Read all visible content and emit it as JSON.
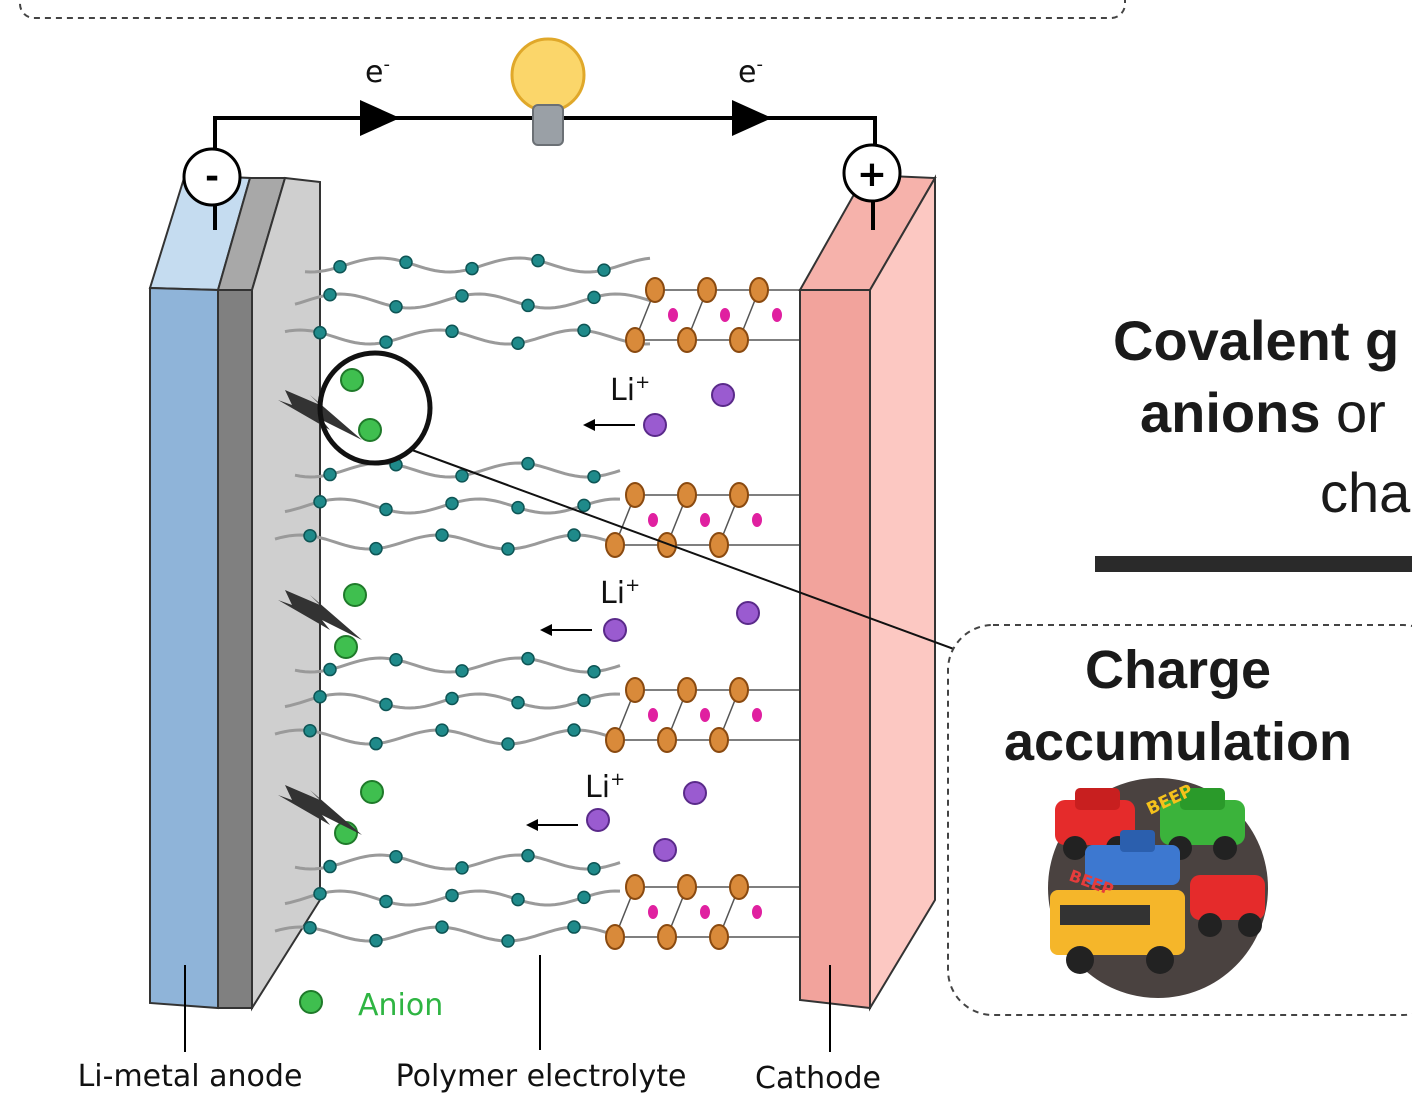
{
  "circuit": {
    "electron_labels": [
      {
        "base": "e",
        "sup": "-"
      },
      {
        "base": "e",
        "sup": "-"
      }
    ],
    "anode_terminal": "-",
    "cathode_terminal": "+"
  },
  "ion_labels": [
    {
      "base": "Li",
      "sup": "+"
    },
    {
      "base": "Li",
      "sup": "+"
    },
    {
      "base": "Li",
      "sup": "+"
    }
  ],
  "legend": {
    "anion": "Anion"
  },
  "component_labels": [
    "Li-metal anode",
    "Polymer electrolyte",
    "Cathode"
  ],
  "side_text": {
    "line1": "Covalent g",
    "line2_bold": "anions",
    "line2_rest": " or",
    "line3": "cha"
  },
  "callout": {
    "title_lines": [
      "Charge",
      "accumulation"
    ],
    "sound_labels": [
      "BEEP",
      "BEEP"
    ]
  }
}
